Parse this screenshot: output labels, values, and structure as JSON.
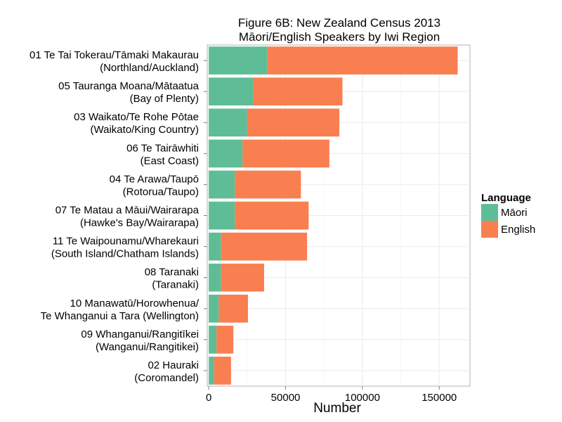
{
  "chart_data": {
    "type": "bar",
    "orientation": "horizontal",
    "stacked": true,
    "title": "Figure 6B: New Zealand Census 2013",
    "subtitle": "Māori/English Speakers by Iwi Region",
    "xlabel": "Number",
    "ylabel": "",
    "xlim": [
      -1000,
      170000
    ],
    "xticks": [
      0,
      50000,
      100000,
      150000
    ],
    "xtick_labels": [
      "0",
      "50000",
      "100000",
      "150000"
    ],
    "grid": true,
    "legend_position": "right",
    "legend_title": "Language",
    "categories": [
      {
        "line1": "01 Te Tai Tokerau/Tāmaki Makaurau",
        "line2": "(Northland/Auckland)"
      },
      {
        "line1": "05 Tauranga Moana/Mātaatua",
        "line2": "(Bay of Plenty)"
      },
      {
        "line1": "03 Waikato/Te Rohe Pōtae",
        "line2": "(Waikato/King Country)"
      },
      {
        "line1": "06 Te Tairāwhiti",
        "line2": "(East Coast)"
      },
      {
        "line1": "04 Te Arawa/Taupō",
        "line2": "(Rotorua/Taupo)"
      },
      {
        "line1": "07 Te Matau a Māui/Wairarapa",
        "line2": "(Hawke's Bay/Wairarapa)"
      },
      {
        "line1": "11 Te Waipounamu/Wharekauri",
        "line2": "(South Island/Chatham Islands)"
      },
      {
        "line1": "08 Taranaki",
        "line2": "(Taranaki)"
      },
      {
        "line1": "10 Manawatū/Horowhenua/",
        "line2": "Te Whanganui a Tara (Wellington)"
      },
      {
        "line1": "09 Whanganui/Rangitīkei",
        "line2": "(Wanganui/Rangitikei)"
      },
      {
        "line1": "02 Hauraki",
        "line2": "(Coromandel)"
      }
    ],
    "series": [
      {
        "name": "Māori",
        "color": "#5ebd96",
        "values": [
          38000,
          29000,
          25000,
          22000,
          17000,
          17000,
          8000,
          8000,
          6500,
          5000,
          3500
        ]
      },
      {
        "name": "English",
        "color": "#f97f51",
        "values": [
          124000,
          58000,
          60000,
          56500,
          43000,
          48000,
          56000,
          28000,
          19000,
          11000,
          11000
        ]
      }
    ]
  }
}
